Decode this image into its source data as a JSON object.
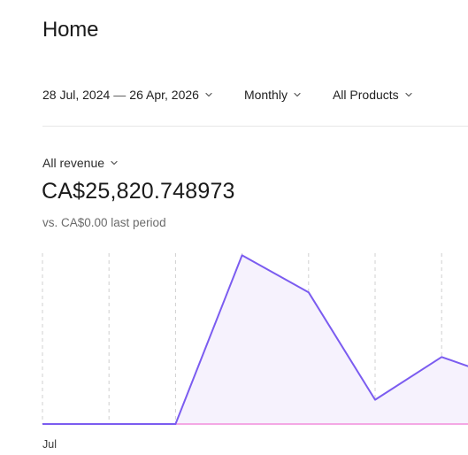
{
  "header": {
    "title": "Home"
  },
  "filters": {
    "date_start": "28 Jul, 2024",
    "date_separator": "—",
    "date_end": "26 Apr, 2026",
    "period": "Monthly",
    "products": "All Products"
  },
  "metric": {
    "selector_label": "All revenue",
    "value": "CA$25,820.748973",
    "comparison": "vs. CA$0.00 last period"
  },
  "colors": {
    "line": "#7b5cf0",
    "area_fill": "#f6f2fd",
    "baseline": "#f4a8e4",
    "gridline": "#d0d0d0"
  },
  "chart_data": {
    "type": "area",
    "x_tick_labels": [
      "Jul"
    ],
    "series": [
      {
        "values": [
          0,
          0,
          0,
          7300,
          5700,
          1050,
          2900,
          1900
        ]
      }
    ],
    "baseline_series": {
      "values": [
        0,
        0,
        0,
        0,
        0,
        0,
        0,
        0
      ]
    },
    "ylim": [
      0,
      7700
    ],
    "grid": {
      "vertical": true,
      "horizontal": false
    }
  }
}
